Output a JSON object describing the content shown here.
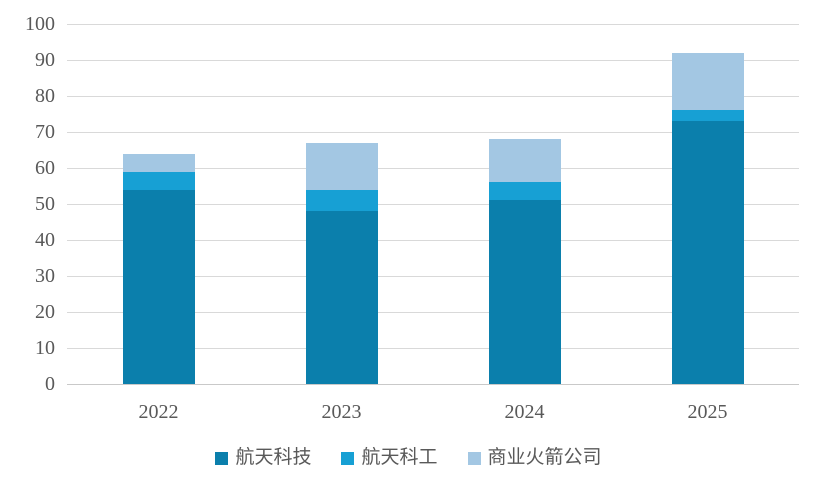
{
  "chart_data": {
    "type": "bar",
    "stacked": true,
    "title": "",
    "xlabel": "",
    "ylabel": "",
    "categories": [
      "2022",
      "2023",
      "2024",
      "2025"
    ],
    "series": [
      {
        "name": "航天科技",
        "color": "#0B7FAC",
        "values": [
          54,
          48,
          51,
          73
        ]
      },
      {
        "name": "航天科工",
        "color": "#17A0D4",
        "values": [
          5,
          6,
          5,
          3
        ]
      },
      {
        "name": "商业火箭公司",
        "color": "#A3C7E3",
        "values": [
          5,
          13,
          12,
          16
        ]
      }
    ],
    "stack_totals": [
      64,
      67,
      68,
      92
    ],
    "ylim": [
      0,
      100
    ],
    "ytick_step": 10,
    "ytick_labels": [
      "0",
      "10",
      "20",
      "30",
      "40",
      "50",
      "60",
      "70",
      "80",
      "90",
      "100"
    ],
    "grid": true,
    "legend_position": "bottom"
  },
  "colors": {
    "background": "#FFFFFF",
    "gridline": "#D9D9D9",
    "axis_line": "#C9C9C9",
    "tick_text": "#595959",
    "legend_text": "#595959"
  }
}
